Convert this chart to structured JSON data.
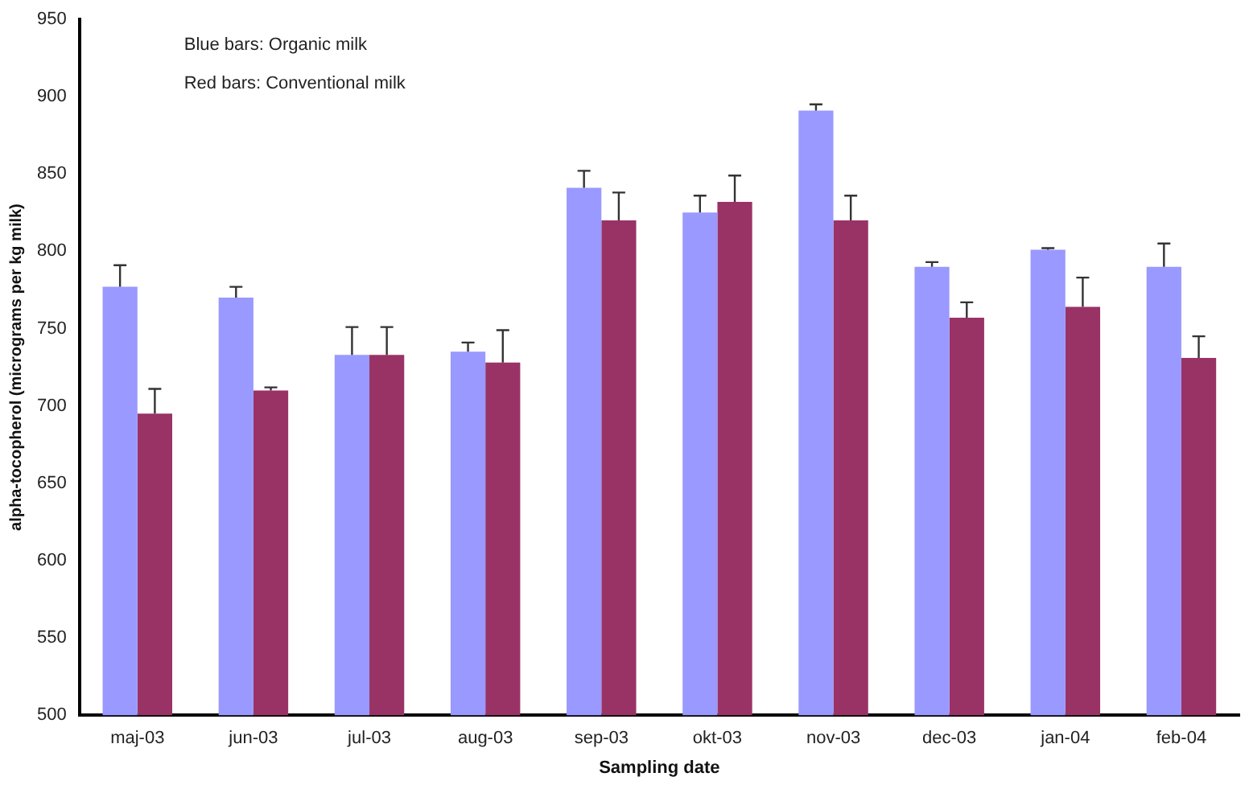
{
  "chart_data": {
    "type": "bar",
    "xlabel": "Sampling date",
    "ylabel": "alpha-tocopherol (micrograms per kg milk)",
    "categories": [
      "maj-03",
      "jun-03",
      "jul-03",
      "aug-03",
      "sep-03",
      "okt-03",
      "nov-03",
      "dec-03",
      "jan-04",
      "feb-04"
    ],
    "series": [
      {
        "color": "#9999ff",
        "values": [
          777,
          770,
          733,
          735,
          841,
          825,
          891,
          790,
          801,
          790
        ],
        "errors": [
          [
            777,
            791
          ],
          [
            770,
            777
          ],
          [
            733,
            751
          ],
          [
            735,
            741
          ],
          [
            841,
            852
          ],
          [
            825,
            836
          ],
          [
            891,
            895
          ],
          [
            790,
            793
          ],
          [
            801,
            802
          ],
          [
            790,
            805
          ]
        ]
      },
      {
        "color": "#993366",
        "values": [
          695,
          710,
          733,
          728,
          820,
          832,
          820,
          757,
          764,
          731
        ],
        "errors": [
          [
            695,
            711
          ],
          [
            710,
            712
          ],
          [
            733,
            751
          ],
          [
            728,
            749
          ],
          [
            820,
            838
          ],
          [
            832,
            849
          ],
          [
            820,
            836
          ],
          [
            757,
            767
          ],
          [
            764,
            783
          ],
          [
            731,
            745
          ]
        ]
      }
    ],
    "annotations": [
      "Blue bars: Organic milk",
      "Red bars: Conventional milk"
    ],
    "ylim": [
      500,
      950
    ],
    "yticks": [
      500,
      550,
      600,
      650,
      700,
      750,
      800,
      850,
      900,
      950
    ],
    "grid": false,
    "legend": false
  }
}
